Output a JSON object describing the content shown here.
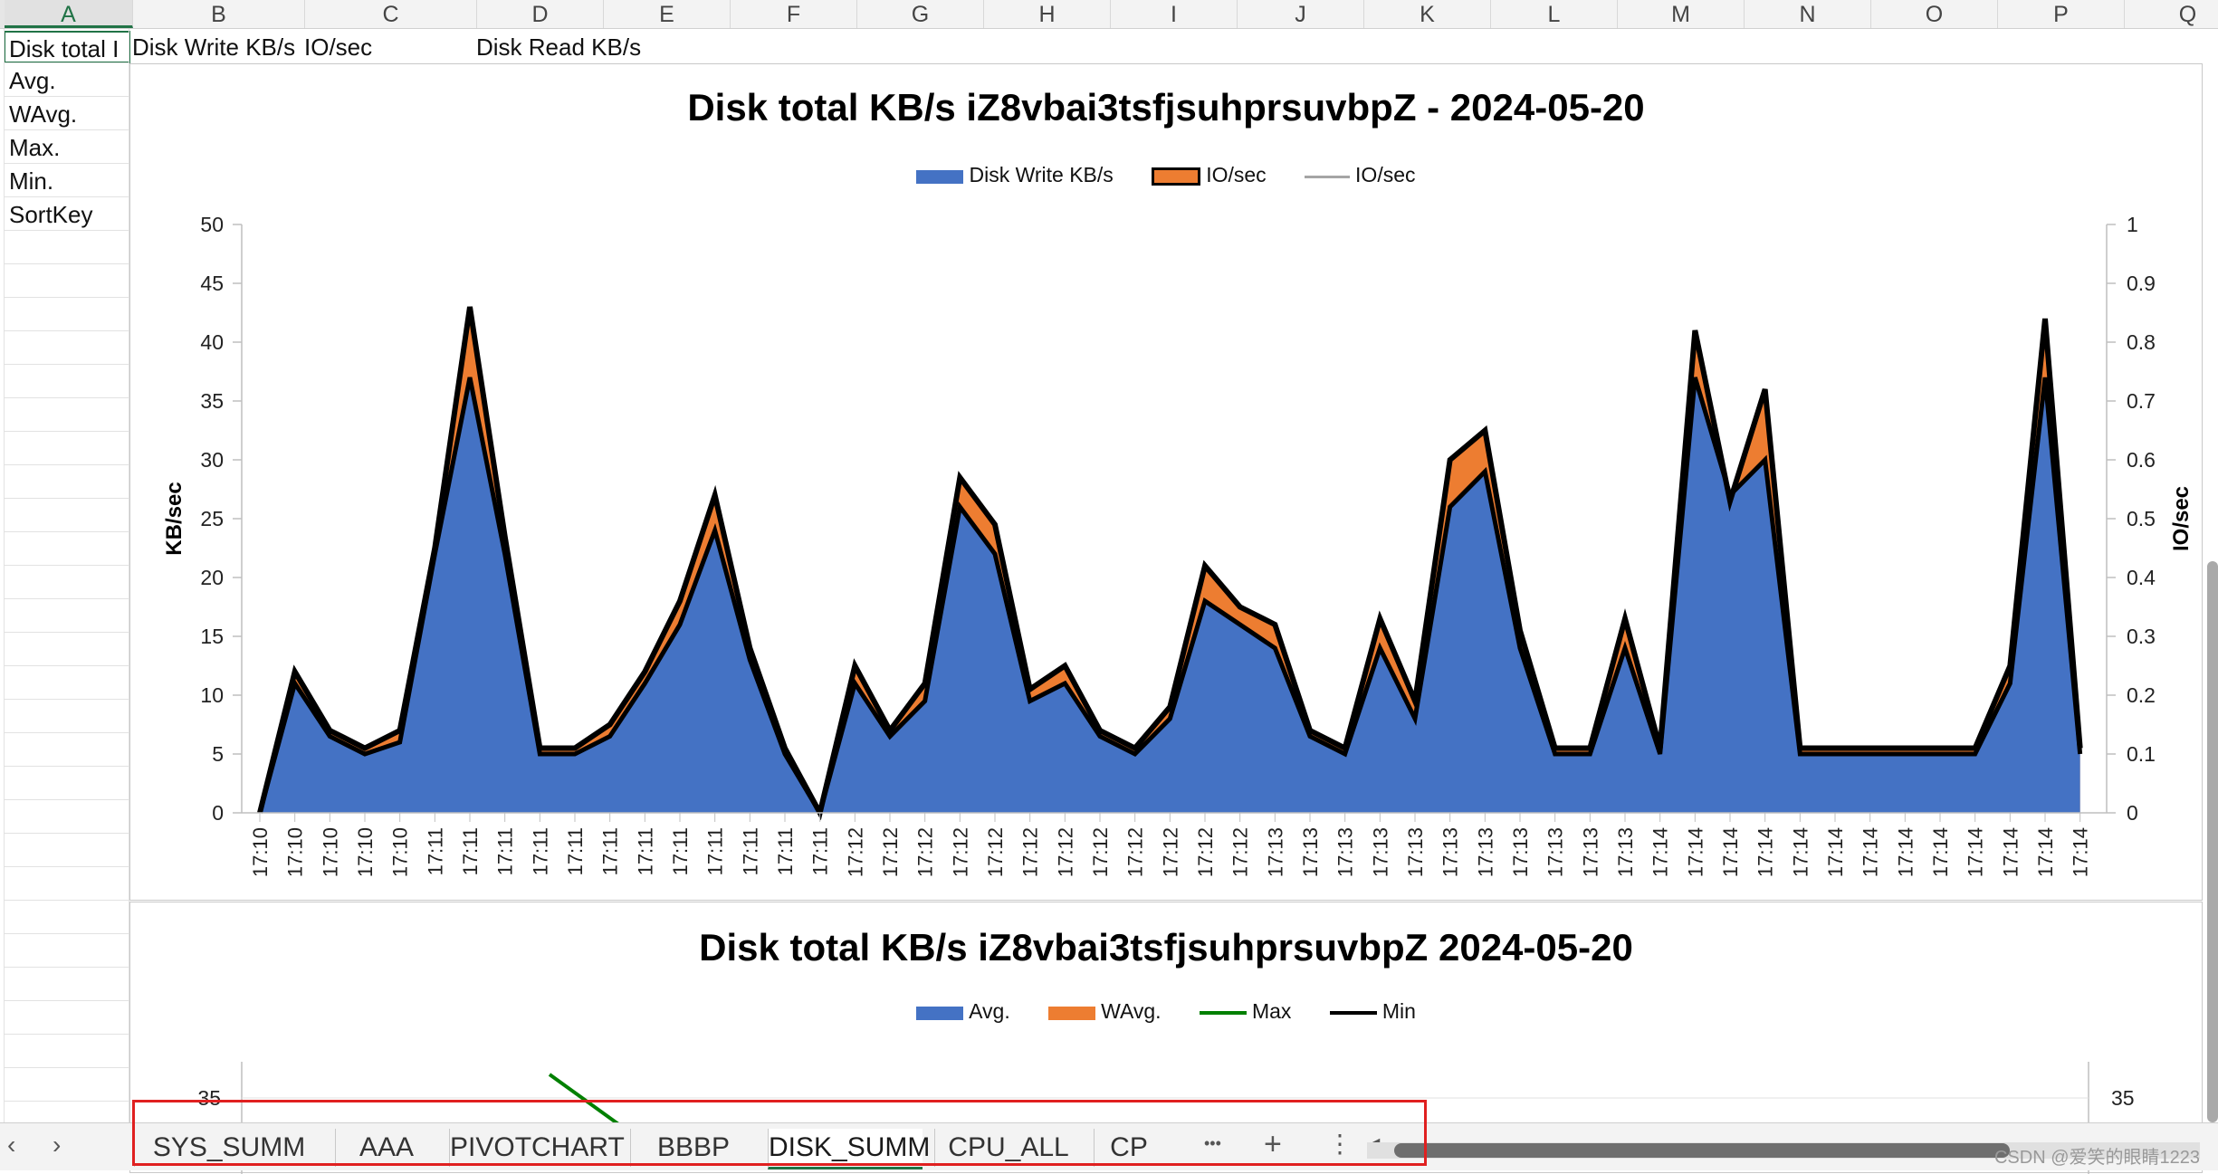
{
  "columns": [
    "A",
    "B",
    "C",
    "D",
    "E",
    "F",
    "G",
    "H",
    "I",
    "J",
    "K",
    "L",
    "M",
    "N",
    "O",
    "P",
    "Q"
  ],
  "row1": {
    "a1": "Disk total I",
    "b1": "Disk Write KB/s",
    "c1": "IO/sec",
    "d1": "Disk Read KB/s"
  },
  "row_labels": [
    "Avg.",
    "WAvg.",
    "Max.",
    "Min.",
    "SortKey"
  ],
  "sheet_tabs": [
    "SYS_SUMM",
    "AAA",
    "PIVOTCHART",
    "BBBP",
    "DISK_SUMM",
    "CPU_ALL",
    "CP"
  ],
  "active_tab": "DISK_SUMM",
  "tab_more": "•••",
  "tab_add": "+",
  "tab_menu": "⋮",
  "watermark": "CSDN @爱笑的眼睛1223",
  "colors": {
    "write": "#4472c4",
    "io": "#ed7d31",
    "max": "#008000",
    "min": "#000000",
    "select": "#217346",
    "highlight": "#e02020"
  },
  "chart_data": [
    {
      "type": "area",
      "title": "Disk total KB/s iZ8vbai3tsfjsuhprsuvbpZ - 2024-05-20",
      "ylabel": "KB/sec",
      "y2label": "IO/sec",
      "ylim": [
        0,
        50
      ],
      "y2lim": [
        0,
        1
      ],
      "yticks": [
        "0",
        "5",
        "10",
        "15",
        "20",
        "25",
        "30",
        "35",
        "40",
        "45",
        "50"
      ],
      "y2ticks": [
        "0",
        "0.1",
        "0.2",
        "0.3",
        "0.4",
        "0.5",
        "0.6",
        "0.7",
        "0.8",
        "0.9",
        "1"
      ],
      "legend_position": "top",
      "legend": [
        "Disk Write KB/s",
        "IO/sec",
        "IO/sec"
      ],
      "x": [
        "17:10",
        "17:10",
        "17:10",
        "17:10",
        "17:10",
        "17:11",
        "17:11",
        "17:11",
        "17:11",
        "17:11",
        "17:11",
        "17:11",
        "17:11",
        "17:11",
        "17:11",
        "17:11",
        "17:11",
        "17:12",
        "17:12",
        "17:12",
        "17:12",
        "17:12",
        "17:12",
        "17:12",
        "17:12",
        "17:12",
        "17:12",
        "17:12",
        "17:12",
        "17:13",
        "17:13",
        "17:13",
        "17:13",
        "17:13",
        "17:13",
        "17:13",
        "17:13",
        "17:13",
        "17:13",
        "17:13",
        "17:14",
        "17:14",
        "17:14",
        "17:14",
        "17:14",
        "17:14",
        "17:14",
        "17:14",
        "17:14",
        "17:14",
        "17:14",
        "17:14",
        "17:14"
      ],
      "series": [
        {
          "name": "Disk Write KB/s",
          "values": [
            0,
            11,
            6.5,
            5,
            6,
            22,
            37,
            22,
            5,
            5,
            6.5,
            11,
            16,
            24,
            13,
            5,
            0,
            11,
            6.5,
            9.5,
            26,
            22,
            9.5,
            11,
            6.5,
            5,
            8,
            18,
            16,
            14,
            6.5,
            5,
            14,
            8,
            26,
            29,
            14,
            5,
            5,
            14,
            5,
            37,
            27,
            30,
            5,
            5,
            5,
            5,
            5,
            5,
            11,
            37,
            5
          ]
        },
        {
          "name": "IO/sec",
          "values": [
            0,
            0.24,
            0.14,
            0.11,
            0.14,
            0.45,
            0.86,
            0.47,
            0.11,
            0.11,
            0.15,
            0.24,
            0.36,
            0.54,
            0.28,
            0.11,
            0,
            0.25,
            0.14,
            0.22,
            0.57,
            0.49,
            0.21,
            0.25,
            0.14,
            0.11,
            0.18,
            0.42,
            0.35,
            0.32,
            0.14,
            0.11,
            0.33,
            0.19,
            0.6,
            0.65,
            0.31,
            0.11,
            0.11,
            0.33,
            0.11,
            0.82,
            0.53,
            0.72,
            0.11,
            0.11,
            0.11,
            0.11,
            0.11,
            0.11,
            0.25,
            0.84,
            0.11
          ]
        }
      ]
    },
    {
      "type": "area",
      "title": "Disk total KB/s iZ8vbai3tsfjsuhprsuvbpZ  2024-05-20",
      "legend_position": "top",
      "legend": [
        "Avg.",
        "WAvg.",
        "Max",
        "Min"
      ],
      "yticks_visible": [
        "35"
      ],
      "y2ticks_visible": [
        "35"
      ]
    }
  ]
}
